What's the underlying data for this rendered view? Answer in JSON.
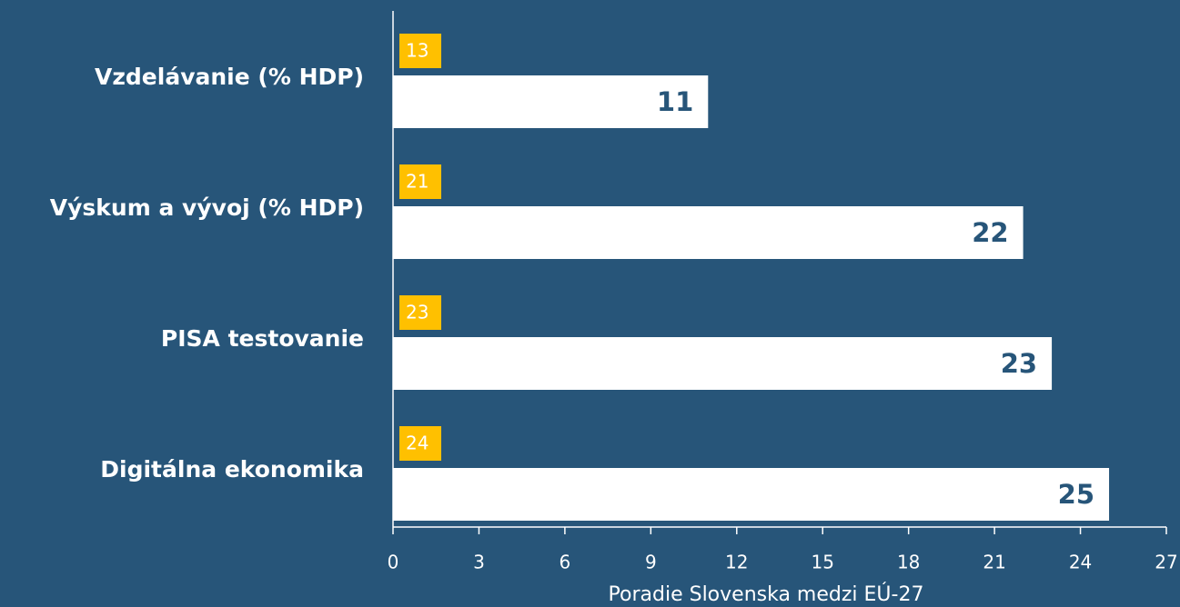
{
  "chart_data": {
    "type": "bar",
    "orientation": "horizontal",
    "categories": [
      "Vzdelávanie (% HDP)",
      "Výskum a vývoj (% HDP)",
      "PISA testovanie",
      "Digitálna ekonomika"
    ],
    "series": [
      {
        "color": "#ffffff",
        "values": [
          11,
          22,
          23,
          25
        ]
      },
      {
        "color": "#ffc000",
        "values": [
          13,
          21,
          23,
          24
        ]
      }
    ],
    "xlabel": "Poradie Slovenska medzi EÚ-27",
    "xlim": [
      0,
      27
    ],
    "xticks": [
      0,
      3,
      6,
      9,
      12,
      15,
      18,
      21,
      24,
      27
    ],
    "background": "#275579"
  }
}
